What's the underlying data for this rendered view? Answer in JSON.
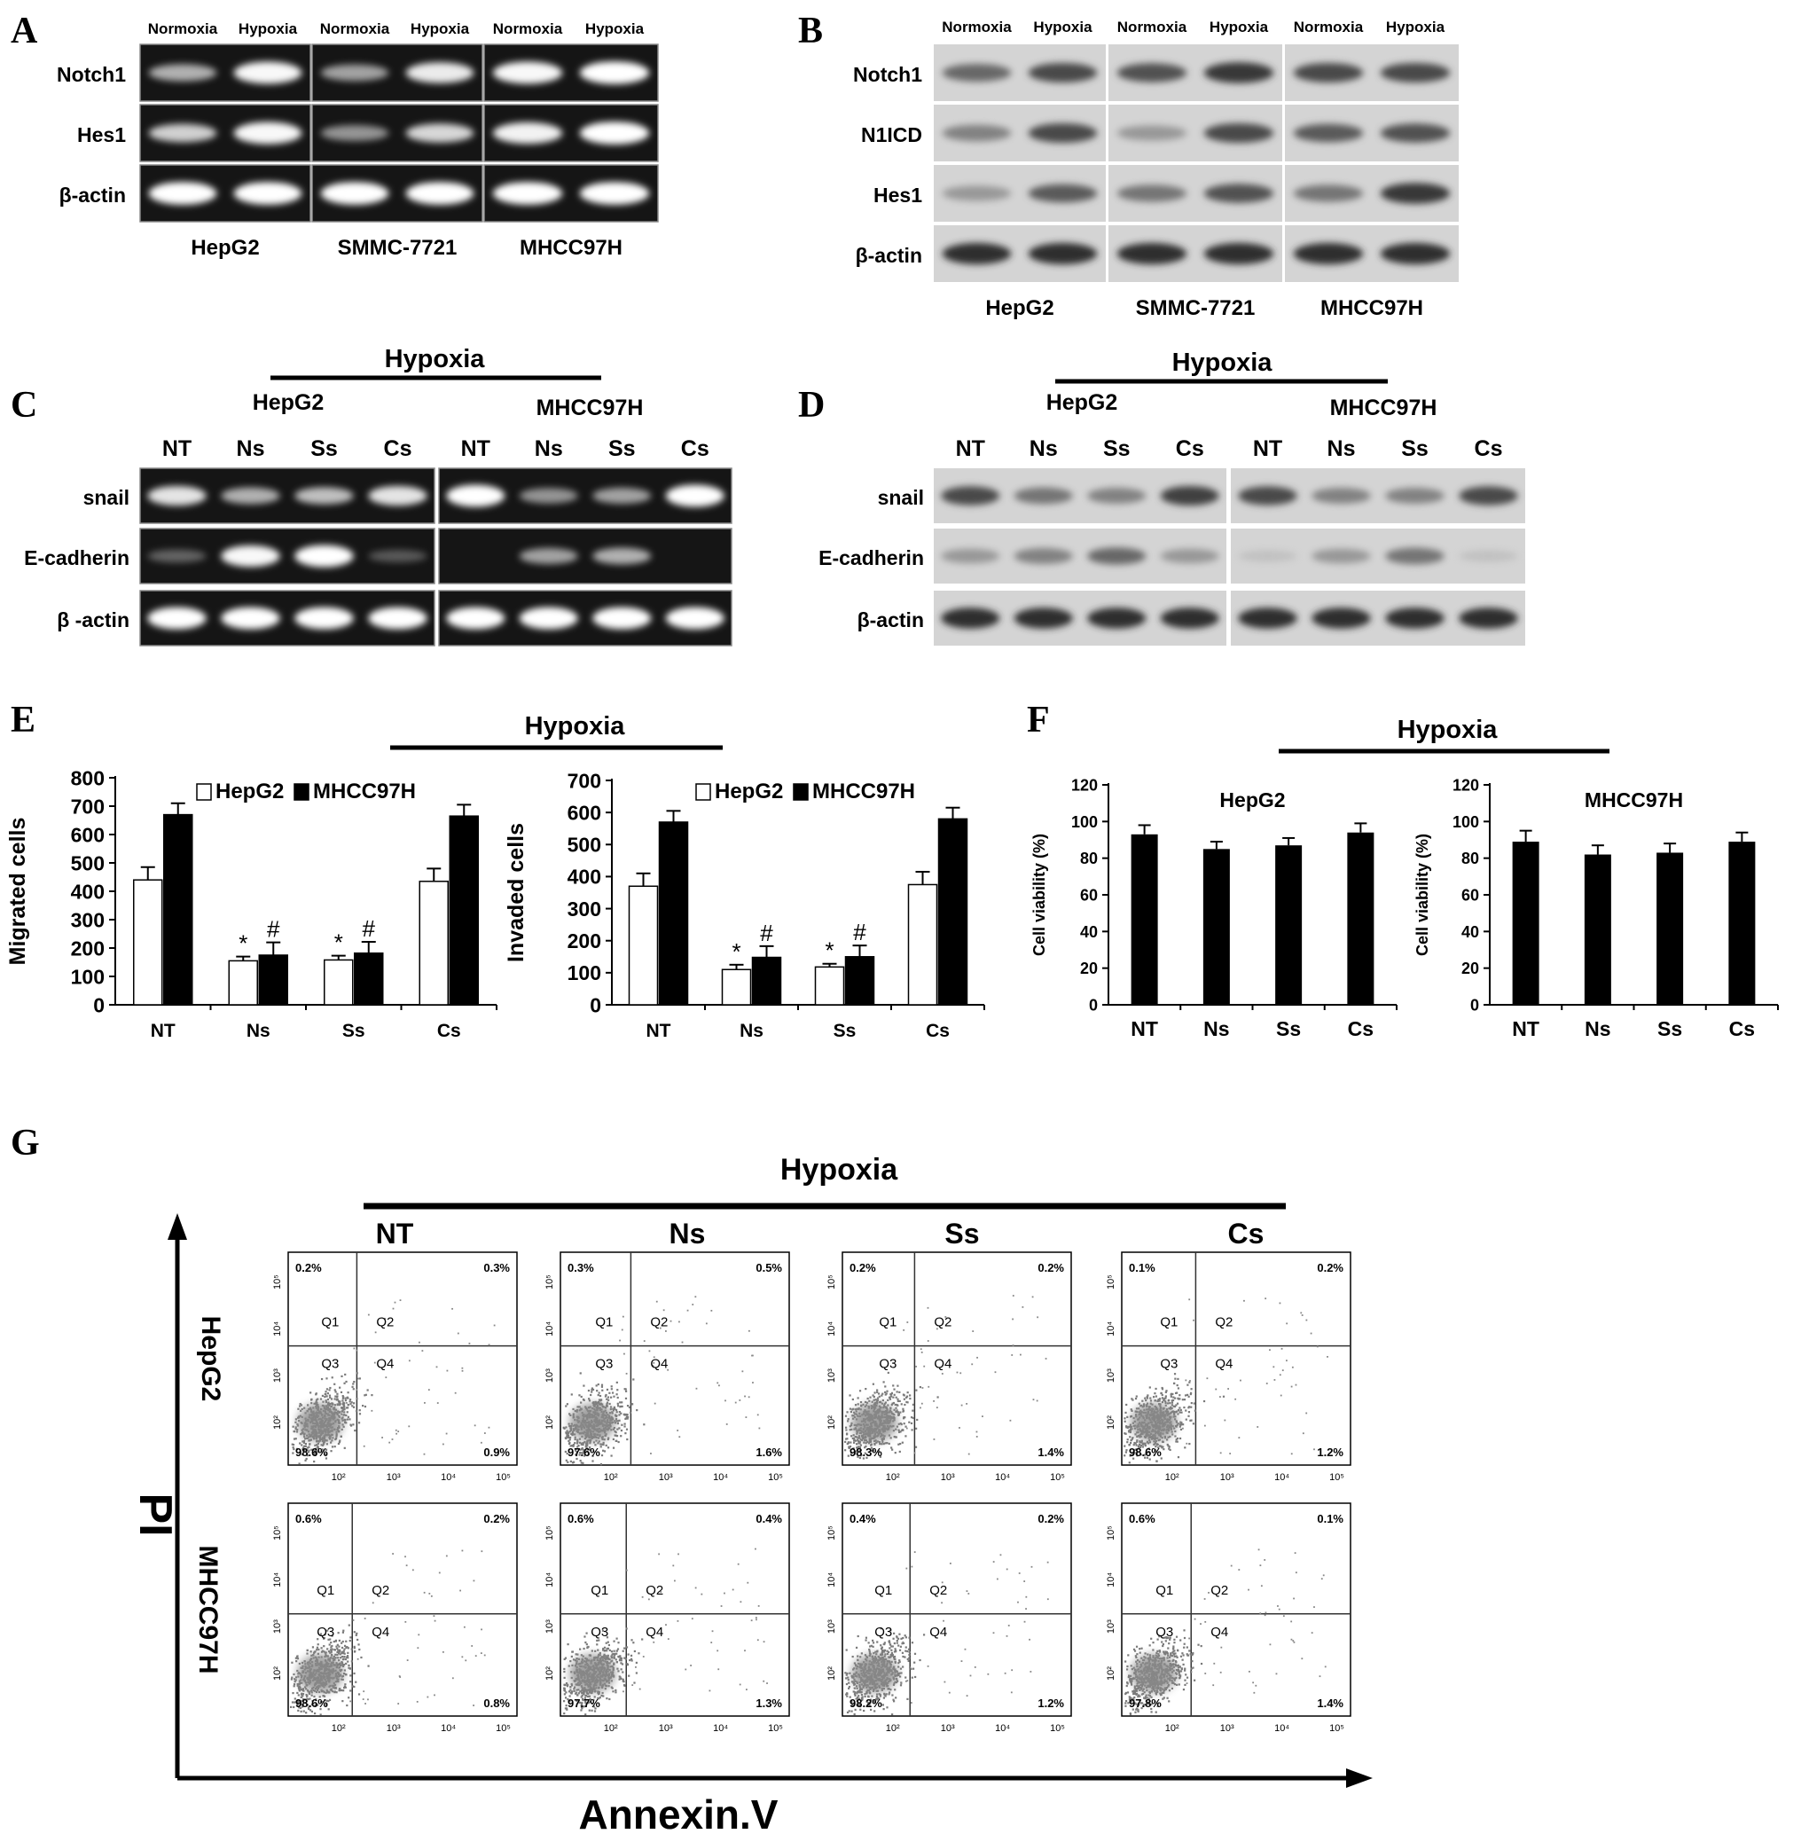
{
  "panels": {
    "A": {
      "letter": "A",
      "lane_labels": [
        "Normoxia",
        "Hypoxia",
        "Normoxia",
        "Hypoxia",
        "Normoxia",
        "Hypoxia"
      ],
      "row_labels": [
        "Notch1",
        "Hes1",
        "β-actin"
      ],
      "cell_lines": [
        "HepG2",
        "SMMC-7721",
        "MHCC97H"
      ],
      "band_intensity": [
        [
          0.55,
          0.95,
          0.5,
          0.85,
          0.95,
          1.0
        ],
        [
          0.65,
          0.95,
          0.45,
          0.7,
          0.9,
          1.0
        ],
        [
          1.0,
          1.0,
          1.0,
          1.0,
          1.0,
          1.0
        ]
      ]
    },
    "B": {
      "letter": "B",
      "lane_labels": [
        "Normoxia",
        "Hypoxia",
        "Normoxia",
        "Hypoxia",
        "Normoxia",
        "Hypoxia"
      ],
      "row_labels": [
        "Notch1",
        "N1ICD",
        "Hes1",
        "β-actin"
      ],
      "cell_lines": [
        "HepG2",
        "SMMC-7721",
        "MHCC97H"
      ],
      "band_intensity": [
        [
          0.6,
          0.75,
          0.7,
          0.85,
          0.75,
          0.75
        ],
        [
          0.5,
          0.75,
          0.4,
          0.75,
          0.65,
          0.7
        ],
        [
          0.4,
          0.65,
          0.55,
          0.7,
          0.55,
          0.85
        ],
        [
          0.9,
          0.9,
          0.9,
          0.9,
          0.9,
          0.9
        ]
      ]
    },
    "C": {
      "letter": "C",
      "header": "Hypoxia",
      "cell_lines": [
        "HepG2",
        "MHCC97H"
      ],
      "lanes": [
        "NT",
        "Ns",
        "Ss",
        "Cs"
      ],
      "row_labels": [
        "snail",
        "E-cadherin",
        "β -actin"
      ],
      "band_intensity": [
        [
          0.8,
          0.55,
          0.6,
          0.8,
          1.0,
          0.45,
          0.5,
          1.0
        ],
        [
          0.25,
          0.95,
          1.0,
          0.2,
          0.0,
          0.5,
          0.55,
          0.0
        ],
        [
          1.0,
          1.0,
          1.0,
          1.0,
          1.0,
          1.0,
          1.0,
          1.0
        ]
      ]
    },
    "D": {
      "letter": "D",
      "header": "Hypoxia",
      "cell_lines": [
        "HepG2",
        "MHCC97H"
      ],
      "lanes": [
        "NT",
        "Ns",
        "Ss",
        "Cs"
      ],
      "row_labels": [
        "snail",
        "E-cadherin",
        "β-actin"
      ],
      "band_intensity": [
        [
          0.75,
          0.55,
          0.5,
          0.8,
          0.75,
          0.5,
          0.5,
          0.75
        ],
        [
          0.4,
          0.5,
          0.6,
          0.4,
          0.15,
          0.4,
          0.55,
          0.15
        ],
        [
          0.9,
          0.9,
          0.9,
          0.9,
          0.9,
          0.9,
          0.9,
          0.9
        ]
      ]
    },
    "E": {
      "letter": "E",
      "header": "Hypoxia"
    },
    "F": {
      "letter": "F",
      "header": "Hypoxia"
    },
    "G": {
      "letter": "G",
      "header": "Hypoxia",
      "columns": [
        "NT",
        "Ns",
        "Ss",
        "Cs"
      ],
      "rows": [
        "HepG2",
        "MHCC97H"
      ],
      "y_axis_label": "PI",
      "x_axis_label": "Annexin.V",
      "quadrant_names": [
        "Q1",
        "Q2",
        "Q3",
        "Q4"
      ],
      "tick_labels": [
        "10²",
        "10³",
        "10⁴",
        "10⁵"
      ],
      "percentages": [
        [
          {
            "q1": "0.2%",
            "q2": "0.3%",
            "q3": "98.6%",
            "q4": "0.9%"
          },
          {
            "q1": "0.3%",
            "q2": "0.5%",
            "q3": "97.6%",
            "q4": "1.6%"
          },
          {
            "q1": "0.2%",
            "q2": "0.2%",
            "q3": "98.3%",
            "q4": "1.4%"
          },
          {
            "q1": "0.1%",
            "q2": "0.2%",
            "q3": "98.6%",
            "q4": "1.2%"
          }
        ],
        [
          {
            "q1": "0.6%",
            "q2": "0.2%",
            "q3": "98.6%",
            "q4": "0.8%"
          },
          {
            "q1": "0.6%",
            "q2": "0.4%",
            "q3": "97.7%",
            "q4": "1.3%"
          },
          {
            "q1": "0.4%",
            "q2": "0.2%",
            "q3": "98.2%",
            "q4": "1.2%"
          },
          {
            "q1": "0.6%",
            "q2": "0.1%",
            "q3": "97.8%",
            "q4": "1.4%"
          }
        ]
      ]
    }
  },
  "chart_data": [
    {
      "id": "E-migrated",
      "type": "bar",
      "categories": [
        "NT",
        "Ns",
        "Ss",
        "Cs"
      ],
      "series": [
        {
          "name": "HepG2",
          "values": [
            440,
            155,
            158,
            435
          ],
          "errors": [
            45,
            15,
            15,
            45
          ],
          "markers": [
            "",
            "*",
            "*",
            ""
          ],
          "fill": "#ffffff"
        },
        {
          "name": "MHCC97H",
          "values": [
            670,
            175,
            182,
            665
          ],
          "errors": [
            40,
            45,
            40,
            40
          ],
          "markers": [
            "",
            "#",
            "#",
            ""
          ],
          "fill": "#000000"
        }
      ],
      "ylabel": "Migrated cells",
      "ylim": [
        0,
        800
      ],
      "yticks": [
        0,
        100,
        200,
        300,
        400,
        500,
        600,
        700,
        800
      ]
    },
    {
      "id": "E-invaded",
      "type": "bar",
      "categories": [
        "NT",
        "Ns",
        "Ss",
        "Cs"
      ],
      "series": [
        {
          "name": "HepG2",
          "values": [
            370,
            110,
            118,
            375
          ],
          "errors": [
            40,
            15,
            10,
            40
          ],
          "markers": [
            "",
            "*",
            "*",
            ""
          ],
          "fill": "#ffffff"
        },
        {
          "name": "MHCC97H",
          "values": [
            570,
            148,
            150,
            580
          ],
          "errors": [
            35,
            35,
            35,
            35
          ],
          "markers": [
            "",
            "#",
            "#",
            ""
          ],
          "fill": "#000000"
        }
      ],
      "ylabel": "Invaded cells",
      "ylim": [
        0,
        700
      ],
      "yticks": [
        0,
        100,
        200,
        300,
        400,
        500,
        600,
        700
      ]
    },
    {
      "id": "F-hepg2",
      "type": "bar",
      "title": "HepG2",
      "categories": [
        "NT",
        "Ns",
        "Ss",
        "Cs"
      ],
      "values": [
        93,
        85,
        87,
        94
      ],
      "errors": [
        5,
        4,
        4,
        5
      ],
      "ylabel": "Cell viability (%)",
      "ylim": [
        0,
        120
      ],
      "yticks": [
        0,
        20,
        40,
        60,
        80,
        100,
        120
      ]
    },
    {
      "id": "F-mhcc97h",
      "type": "bar",
      "title": "MHCC97H",
      "categories": [
        "NT",
        "Ns",
        "Ss",
        "Cs"
      ],
      "values": [
        89,
        82,
        83,
        89
      ],
      "errors": [
        6,
        5,
        5,
        5
      ],
      "ylabel": "Cell viability (%)",
      "ylim": [
        0,
        120
      ],
      "yticks": [
        0,
        20,
        40,
        60,
        80,
        100,
        120
      ]
    }
  ]
}
